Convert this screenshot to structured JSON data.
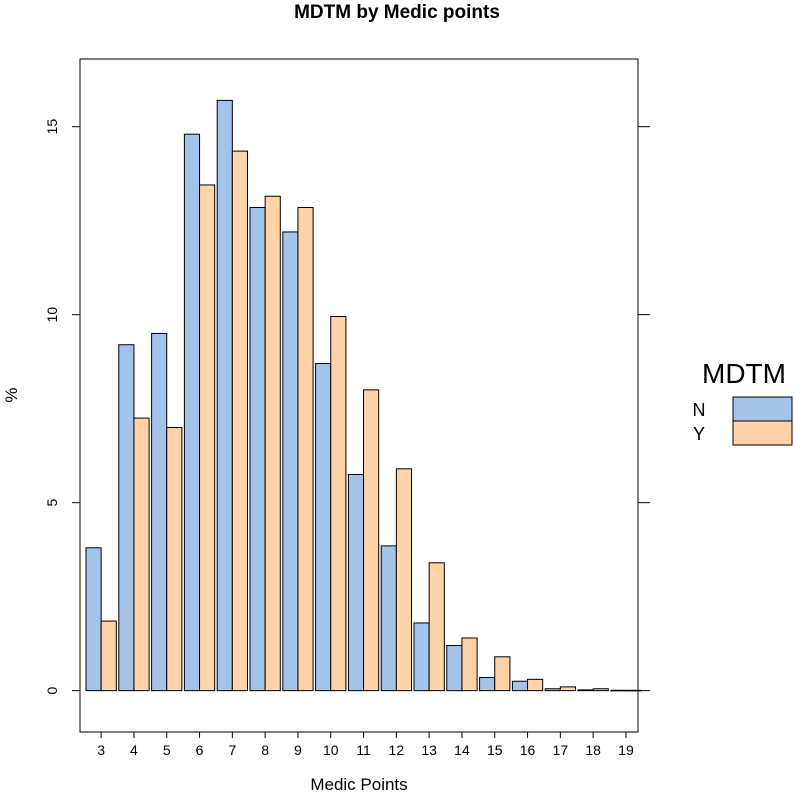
{
  "chart_data": {
    "type": "bar",
    "title": "MDTM by Medic points",
    "xlabel": "Medic Points",
    "ylabel": "%",
    "categories": [
      "3",
      "4",
      "5",
      "6",
      "7",
      "8",
      "9",
      "10",
      "11",
      "12",
      "13",
      "14",
      "15",
      "16",
      "17",
      "18",
      "19"
    ],
    "series": [
      {
        "name": "N",
        "color": "#a3c4e8",
        "values": [
          3.8,
          9.2,
          9.5,
          14.8,
          15.7,
          12.85,
          12.2,
          8.7,
          5.75,
          3.85,
          1.8,
          1.2,
          0.35,
          0.25,
          0.05,
          0.02,
          0.01
        ]
      },
      {
        "name": "Y",
        "color": "#ffd2a8",
        "values": [
          1.85,
          7.25,
          7.0,
          13.45,
          14.35,
          13.15,
          12.85,
          9.95,
          8.0,
          5.9,
          3.4,
          1.4,
          0.9,
          0.3,
          0.1,
          0.05,
          0.01
        ]
      }
    ],
    "ylim": [
      -1.1,
      16.8
    ],
    "yticks": [
      0,
      5,
      10,
      15
    ],
    "legend": {
      "title": "MDTM",
      "position": "right"
    },
    "grid": false
  }
}
